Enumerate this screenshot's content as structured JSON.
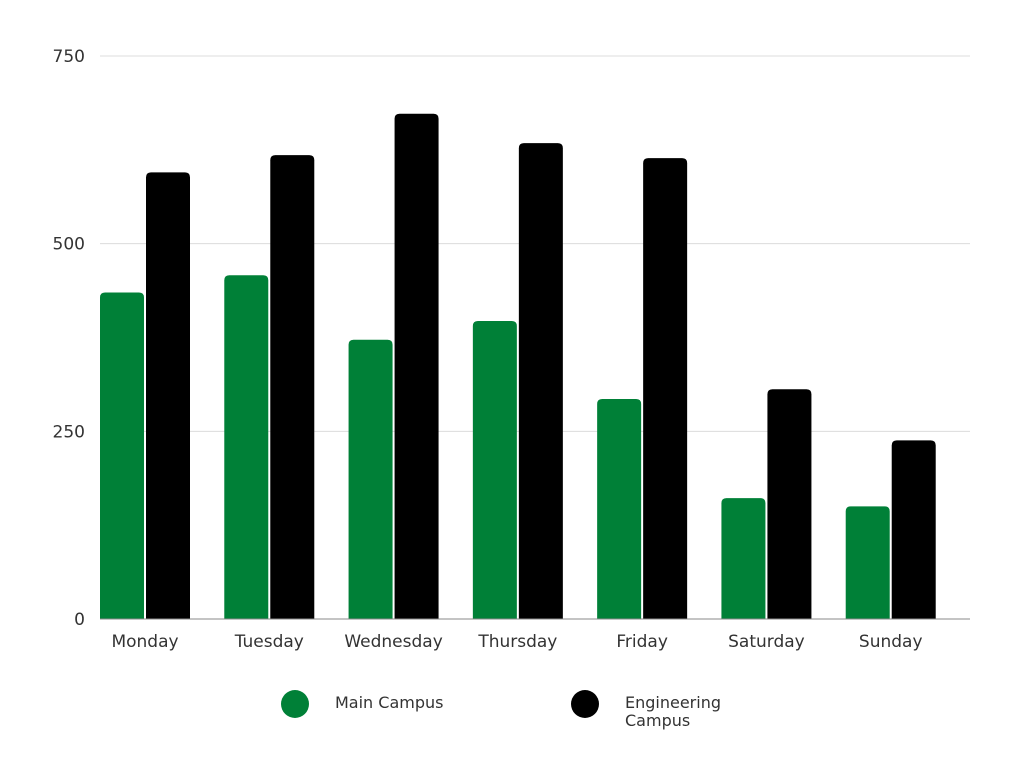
{
  "chart_data": {
    "type": "bar",
    "categories": [
      "Monday",
      "Tuesday",
      "Wednesday",
      "Thursday",
      "Friday",
      "Saturday",
      "Sunday"
    ],
    "series": [
      {
        "name": "Main Campus",
        "color": "#008037",
        "values": [
          435,
          458,
          372,
          397,
          293,
          161,
          150
        ]
      },
      {
        "name": "Engineering Campus",
        "color": "#000000",
        "values": [
          595,
          618,
          673,
          634,
          614,
          306,
          238
        ]
      }
    ],
    "ylim": [
      0,
      750
    ],
    "yticks": [
      0,
      250,
      500,
      750
    ],
    "grid": true,
    "legend_position": "bottom"
  }
}
